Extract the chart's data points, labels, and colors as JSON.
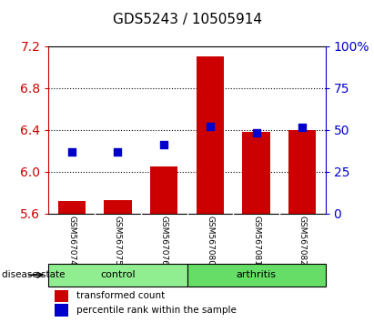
{
  "title": "GDS5243 / 10505914",
  "samples": [
    "GSM567074",
    "GSM567075",
    "GSM567076",
    "GSM567080",
    "GSM567081",
    "GSM567082"
  ],
  "bar_bottoms": [
    5.6,
    5.6,
    5.6,
    5.6,
    5.6,
    5.6
  ],
  "bar_tops": [
    5.72,
    5.73,
    6.05,
    7.1,
    6.38,
    6.4
  ],
  "blue_dots": [
    6.19,
    6.19,
    6.26,
    6.43,
    6.37,
    6.42
  ],
  "ylim_left": [
    5.6,
    7.2
  ],
  "ylim_right": [
    0,
    100
  ],
  "yticks_left": [
    5.6,
    6.0,
    6.4,
    6.8,
    7.2
  ],
  "yticks_right": [
    0,
    25,
    50,
    75,
    100
  ],
  "ytick_labels_right": [
    "0",
    "25",
    "50",
    "75",
    "100%"
  ],
  "bar_color": "#cc0000",
  "dot_color": "#0000cc",
  "control_color": "#90ee90",
  "arthritis_color": "#66dd66",
  "group_label": "disease state",
  "label_color_left": "#cc0000",
  "label_color_right": "#0000cc",
  "bg_color_plot": "#ffffff",
  "bg_color_xaxis": "#c0c0c0",
  "legend_items": [
    "transformed count",
    "percentile rank within the sample"
  ],
  "bar_width": 0.6,
  "dot_size": 40,
  "yticks_grid": [
    6.0,
    6.4,
    6.8
  ]
}
